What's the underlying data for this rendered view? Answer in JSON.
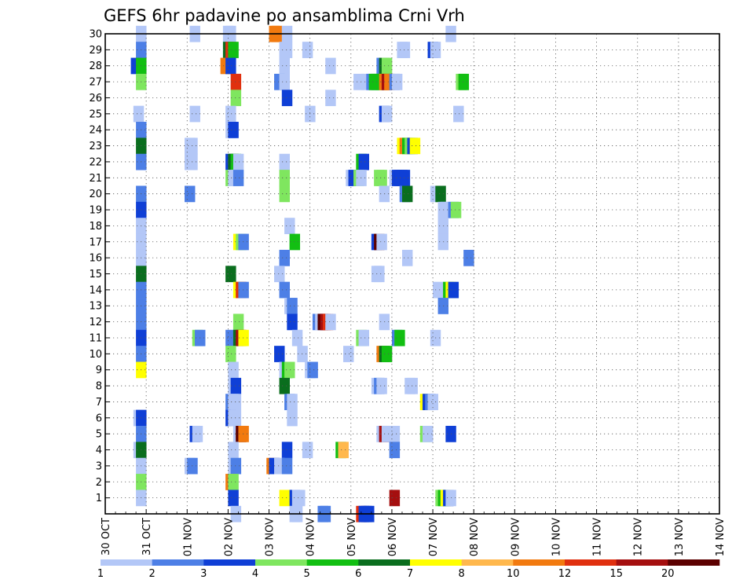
{
  "chart_data": {
    "type": "heatmap",
    "title": "GEFS 6hr padavine po ansamblima Crni Vrh",
    "xlabel": "",
    "ylabel": "",
    "x_ticks": [
      "30 OCT",
      "31 OCT",
      "01 NOV",
      "02 NOV",
      "03 NOV",
      "04 NOV",
      "05 NOV",
      "06 NOV",
      "07 NOV",
      "08 NOV",
      "09 NOV",
      "10 NOV",
      "11 NOV",
      "12 NOV",
      "13 NOV",
      "14 NOV"
    ],
    "y_ticks": [
      "1",
      "2",
      "3",
      "4",
      "5",
      "6",
      "7",
      "8",
      "9",
      "10",
      "11",
      "12",
      "13",
      "14",
      "15",
      "16",
      "17",
      "18",
      "19",
      "20",
      "21",
      "22",
      "23",
      "24",
      "25",
      "26",
      "27",
      "28",
      "29",
      "30"
    ],
    "x_range_days": [
      0,
      15
    ],
    "y_range": [
      0,
      30
    ],
    "grid": true,
    "legend_position": "bottom",
    "legend_labels": [
      "1",
      "2",
      "3",
      "4",
      "5",
      "6",
      "7",
      "8",
      "10",
      "12",
      "15",
      "20"
    ],
    "colors": [
      "#b3c7f7",
      "#4d7fe6",
      "#0f3fd6",
      "#7fe65f",
      "#12bf12",
      "#0a6e1e",
      "#ffff00",
      "#ffb84d",
      "#f27a0f",
      "#e0300f",
      "#a50f0f",
      "#5c0000"
    ],
    "cells": [
      [
        3,
        30,
        0
      ],
      [
        8.25,
        30,
        0
      ],
      [
        11.5,
        30,
        0
      ],
      [
        11.75,
        30,
        0
      ],
      [
        16,
        30,
        8
      ],
      [
        16.25,
        30,
        8
      ],
      [
        17.25,
        30,
        0
      ],
      [
        33.25,
        30,
        0
      ],
      [
        3,
        29,
        1
      ],
      [
        11.5,
        29,
        5
      ],
      [
        11.75,
        29,
        9
      ],
      [
        12,
        29,
        4
      ],
      [
        17,
        29,
        0
      ],
      [
        17.25,
        29,
        0
      ],
      [
        19.25,
        29,
        0
      ],
      [
        28.5,
        29,
        0
      ],
      [
        28.75,
        29,
        0
      ],
      [
        31.5,
        29,
        2
      ],
      [
        31.75,
        29,
        0
      ],
      [
        2.5,
        28,
        2
      ],
      [
        3,
        28,
        4
      ],
      [
        11.25,
        28,
        8
      ],
      [
        11.75,
        28,
        2
      ],
      [
        17,
        28,
        0
      ],
      [
        21.5,
        28,
        0
      ],
      [
        26.5,
        28,
        1
      ],
      [
        26.75,
        28,
        5
      ],
      [
        27,
        28,
        3
      ],
      [
        3,
        27,
        3
      ],
      [
        12.25,
        27,
        9
      ],
      [
        16.5,
        27,
        1
      ],
      [
        17,
        27,
        0
      ],
      [
        24.25,
        27,
        0
      ],
      [
        25,
        27,
        0
      ],
      [
        25.5,
        27,
        1
      ],
      [
        25.75,
        27,
        4
      ],
      [
        26,
        27,
        4
      ],
      [
        26.5,
        27,
        4
      ],
      [
        26.75,
        27,
        8
      ],
      [
        27,
        27,
        10
      ],
      [
        27.25,
        27,
        8
      ],
      [
        27.75,
        27,
        1
      ],
      [
        28,
        27,
        0
      ],
      [
        34.25,
        27,
        3
      ],
      [
        34.5,
        27,
        4
      ],
      [
        12.25,
        26,
        3
      ],
      [
        17.25,
        26,
        2
      ],
      [
        21.5,
        26,
        0
      ],
      [
        2.75,
        25,
        0
      ],
      [
        8.25,
        25,
        0
      ],
      [
        11.75,
        25,
        0
      ],
      [
        19.5,
        25,
        0
      ],
      [
        26.75,
        25,
        2
      ],
      [
        27,
        25,
        0
      ],
      [
        34,
        25,
        0
      ],
      [
        3,
        24,
        1
      ],
      [
        11.75,
        24,
        0
      ],
      [
        12,
        24,
        2
      ],
      [
        3,
        23,
        5
      ],
      [
        7.75,
        23,
        0
      ],
      [
        8,
        23,
        0
      ],
      [
        28.5,
        23,
        6
      ],
      [
        28.75,
        23,
        8
      ],
      [
        29,
        23,
        4
      ],
      [
        29.25,
        23,
        3
      ],
      [
        29.5,
        23,
        2
      ],
      [
        29.75,
        23,
        6
      ],
      [
        3,
        22,
        1
      ],
      [
        7.75,
        22,
        0
      ],
      [
        8,
        22,
        0
      ],
      [
        11.75,
        22,
        2
      ],
      [
        12,
        22,
        5
      ],
      [
        12.25,
        22,
        4
      ],
      [
        12.5,
        22,
        0
      ],
      [
        17,
        22,
        0
      ],
      [
        24.5,
        22,
        4
      ],
      [
        24.75,
        22,
        2
      ],
      [
        11.75,
        21,
        3
      ],
      [
        12,
        21,
        0
      ],
      [
        12.25,
        21,
        0
      ],
      [
        12.5,
        21,
        1
      ],
      [
        17,
        21,
        3
      ],
      [
        23.5,
        21,
        0
      ],
      [
        23.75,
        21,
        2
      ],
      [
        24.25,
        21,
        3
      ],
      [
        24.5,
        21,
        0
      ],
      [
        26.25,
        21,
        3
      ],
      [
        26.5,
        21,
        3
      ],
      [
        27.75,
        21,
        0
      ],
      [
        28,
        21,
        2
      ],
      [
        28.25,
        21,
        2
      ],
      [
        28.5,
        21,
        2
      ],
      [
        28.75,
        21,
        2
      ],
      [
        3,
        20,
        1
      ],
      [
        7.75,
        20,
        1
      ],
      [
        17,
        20,
        3
      ],
      [
        26.75,
        20,
        0
      ],
      [
        28.75,
        20,
        1
      ],
      [
        29,
        20,
        5
      ],
      [
        31.75,
        20,
        0
      ],
      [
        32.25,
        20,
        5
      ],
      [
        3,
        19,
        2
      ],
      [
        32.5,
        19,
        0
      ],
      [
        32.75,
        19,
        0
      ],
      [
        33.5,
        19,
        1
      ],
      [
        33.75,
        19,
        3
      ],
      [
        3,
        18,
        0
      ],
      [
        17.5,
        18,
        0
      ],
      [
        32.5,
        18,
        0
      ],
      [
        3,
        17,
        0
      ],
      [
        12.5,
        17,
        6
      ],
      [
        12.75,
        17,
        3
      ],
      [
        13,
        17,
        1
      ],
      [
        18,
        17,
        4
      ],
      [
        26,
        17,
        2
      ],
      [
        26.25,
        17,
        11
      ],
      [
        26.5,
        17,
        0
      ],
      [
        32.5,
        17,
        0
      ],
      [
        3,
        16,
        0
      ],
      [
        17,
        16,
        1
      ],
      [
        29,
        16,
        0
      ],
      [
        35,
        16,
        1
      ],
      [
        3,
        15,
        5
      ],
      [
        11.75,
        15,
        5
      ],
      [
        16.5,
        15,
        0
      ],
      [
        26,
        15,
        0
      ],
      [
        26.25,
        15,
        0
      ],
      [
        3,
        14,
        1
      ],
      [
        12.5,
        14,
        6
      ],
      [
        12.75,
        14,
        9
      ],
      [
        13,
        14,
        1
      ],
      [
        17,
        14,
        1
      ],
      [
        32,
        14,
        0
      ],
      [
        33,
        14,
        4
      ],
      [
        33.25,
        14,
        6
      ],
      [
        33.5,
        14,
        2
      ],
      [
        3,
        13,
        1
      ],
      [
        17.5,
        13,
        0
      ],
      [
        17.75,
        13,
        1
      ],
      [
        32.5,
        13,
        1
      ],
      [
        3,
        12,
        1
      ],
      [
        12.5,
        12,
        3
      ],
      [
        17.75,
        12,
        2
      ],
      [
        20.25,
        12,
        1
      ],
      [
        20.5,
        12,
        0
      ],
      [
        20.75,
        12,
        11
      ],
      [
        21,
        12,
        10
      ],
      [
        21.25,
        12,
        9
      ],
      [
        21.5,
        12,
        0
      ],
      [
        26.75,
        12,
        0
      ],
      [
        3,
        11,
        2
      ],
      [
        8.5,
        11,
        3
      ],
      [
        8.75,
        11,
        1
      ],
      [
        11.75,
        11,
        1
      ],
      [
        12.5,
        11,
        5
      ],
      [
        12.75,
        11,
        10
      ],
      [
        13,
        11,
        6
      ],
      [
        18.25,
        11,
        0
      ],
      [
        24.5,
        11,
        3
      ],
      [
        24.75,
        11,
        0
      ],
      [
        28,
        11,
        1
      ],
      [
        28.25,
        11,
        4
      ],
      [
        31.75,
        11,
        0
      ],
      [
        3,
        10,
        1
      ],
      [
        11.75,
        10,
        3
      ],
      [
        16.5,
        10,
        2
      ],
      [
        18.75,
        10,
        0
      ],
      [
        23.25,
        10,
        0
      ],
      [
        26.5,
        10,
        8
      ],
      [
        26.75,
        10,
        5
      ],
      [
        27,
        10,
        4
      ],
      [
        3,
        9,
        6
      ],
      [
        12,
        9,
        0
      ],
      [
        17,
        9,
        0
      ],
      [
        17.25,
        9,
        4
      ],
      [
        17.5,
        9,
        3
      ],
      [
        19.5,
        9,
        0
      ],
      [
        19.75,
        9,
        1
      ],
      [
        12,
        8,
        0
      ],
      [
        12.25,
        8,
        2
      ],
      [
        17,
        8,
        5
      ],
      [
        26,
        8,
        0
      ],
      [
        26.25,
        8,
        1
      ],
      [
        26.5,
        8,
        0
      ],
      [
        29.25,
        8,
        0
      ],
      [
        29.5,
        8,
        0
      ],
      [
        11.75,
        7,
        1
      ],
      [
        12,
        7,
        0
      ],
      [
        12.25,
        7,
        0
      ],
      [
        17.5,
        7,
        1
      ],
      [
        17.75,
        7,
        0
      ],
      [
        30.75,
        7,
        6
      ],
      [
        31,
        7,
        2
      ],
      [
        31.25,
        7,
        1
      ],
      [
        31.5,
        7,
        0
      ],
      [
        2.75,
        6,
        0
      ],
      [
        3,
        6,
        2
      ],
      [
        11.75,
        6,
        2
      ],
      [
        12,
        6,
        0
      ],
      [
        12.25,
        6,
        0
      ],
      [
        17.75,
        6,
        0
      ],
      [
        3,
        5,
        1
      ],
      [
        8.25,
        5,
        2
      ],
      [
        8.5,
        5,
        0
      ],
      [
        12.5,
        5,
        0
      ],
      [
        12.75,
        5,
        11
      ],
      [
        13,
        5,
        8
      ],
      [
        26.5,
        5,
        0
      ],
      [
        26.75,
        5,
        10
      ],
      [
        27,
        5,
        0
      ],
      [
        27.75,
        5,
        0
      ],
      [
        30.75,
        5,
        3
      ],
      [
        31,
        5,
        0
      ],
      [
        33.25,
        5,
        2
      ],
      [
        2.75,
        4,
        0
      ],
      [
        3,
        4,
        5
      ],
      [
        12,
        4,
        0
      ],
      [
        17.25,
        4,
        2
      ],
      [
        19.25,
        4,
        0
      ],
      [
        22.5,
        4,
        4
      ],
      [
        22.75,
        4,
        7
      ],
      [
        27.75,
        4,
        1
      ],
      [
        3,
        3,
        0
      ],
      [
        7.75,
        3,
        0
      ],
      [
        8,
        3,
        1
      ],
      [
        12,
        3,
        0
      ],
      [
        12.25,
        3,
        1
      ],
      [
        15.75,
        3,
        8
      ],
      [
        16,
        3,
        2
      ],
      [
        16.5,
        3,
        0
      ],
      [
        17.25,
        3,
        1
      ],
      [
        3,
        2,
        3
      ],
      [
        11.75,
        2,
        8
      ],
      [
        12,
        2,
        3
      ],
      [
        3,
        1,
        0
      ],
      [
        12,
        1,
        2
      ],
      [
        17,
        1,
        6
      ],
      [
        18,
        1,
        2
      ],
      [
        18.25,
        1,
        0
      ],
      [
        18.5,
        1,
        0
      ],
      [
        27.75,
        1,
        10
      ],
      [
        32.25,
        1,
        3
      ],
      [
        32.5,
        1,
        4
      ],
      [
        32.75,
        1,
        6
      ],
      [
        33,
        1,
        2
      ],
      [
        33.25,
        1,
        0
      ],
      [
        12.25,
        0,
        0
      ],
      [
        18,
        0,
        0
      ],
      [
        18.25,
        0,
        0
      ],
      [
        20.75,
        0,
        1
      ],
      [
        21,
        0,
        1
      ],
      [
        24.5,
        0,
        9
      ],
      [
        24.75,
        0,
        2
      ],
      [
        25,
        0,
        2
      ],
      [
        25.25,
        0,
        2
      ]
    ]
  }
}
